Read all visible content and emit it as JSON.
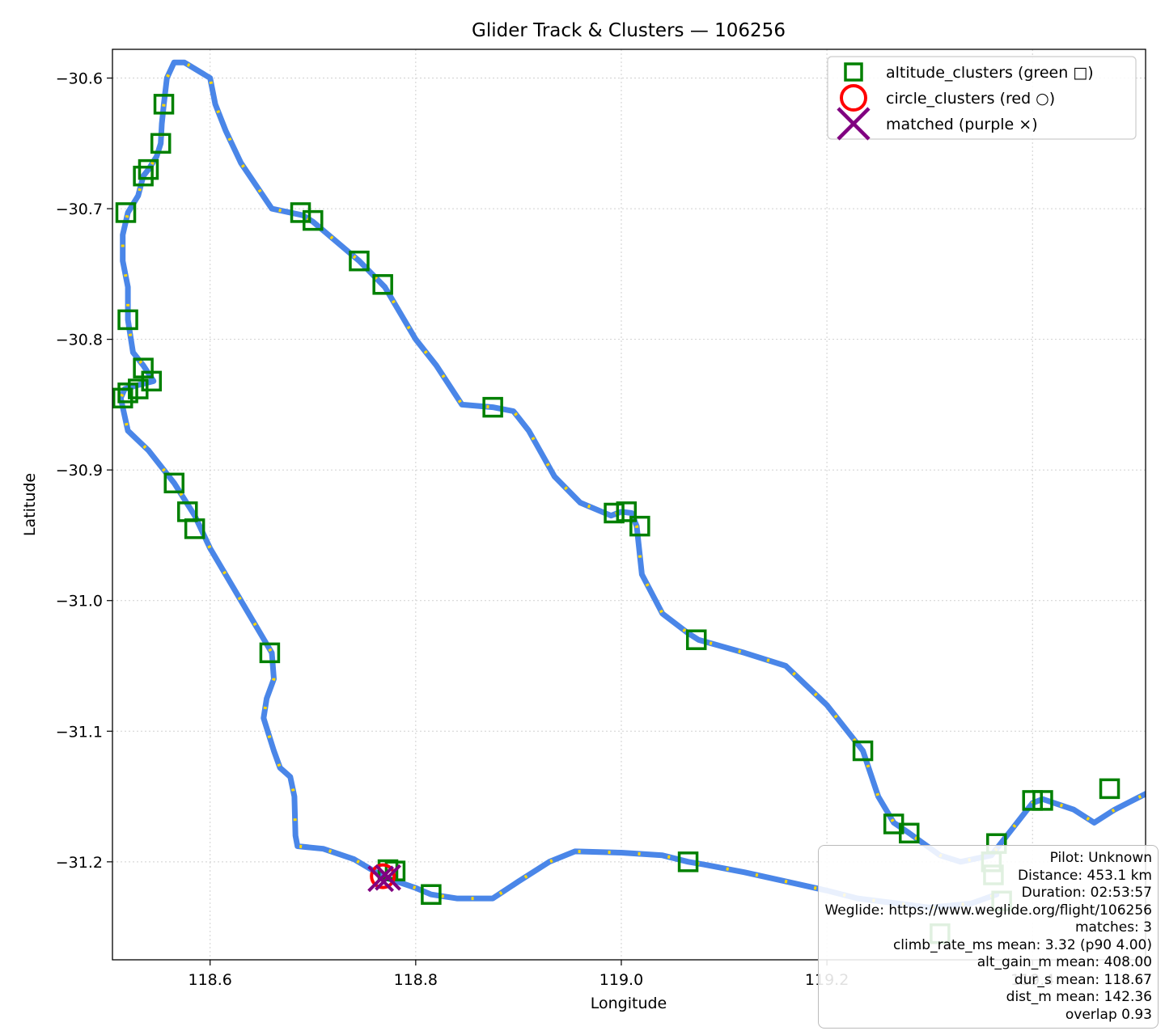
{
  "chart_data": {
    "type": "scatter",
    "title": "Glider Track & Clusters — 106256",
    "xlabel": "Longitude",
    "ylabel": "Latitude",
    "xlim": [
      118.505,
      119.51
    ],
    "ylim": [
      -31.275,
      -30.578
    ],
    "x_ticks": [
      118.6,
      118.8,
      119.0,
      119.2,
      119.4
    ],
    "x_tick_labels": [
      "118.6",
      "118.8",
      "119.0",
      "119.2",
      "119.4"
    ],
    "y_ticks": [
      -30.6,
      -30.7,
      -30.8,
      -30.9,
      -31.0,
      -31.1,
      -31.2
    ],
    "y_tick_labels": [
      "−30.6",
      "−30.7",
      "−30.8",
      "−30.9",
      "−31.0",
      "−31.1",
      "−31.2"
    ],
    "grid": true,
    "legend_position": "top-right",
    "legend": [
      {
        "label": "altitude_clusters (green □)",
        "marker": "square",
        "color": "#008000"
      },
      {
        "label": "circle_clusters (red ○)",
        "marker": "circle",
        "color": "#ff0000"
      },
      {
        "label": "matched (purple ×)",
        "marker": "x",
        "color": "#800080"
      }
    ],
    "track": {
      "color": "#4a86e8",
      "highlight_color": "#ffd700",
      "points": [
        [
          118.77,
          -31.212
        ],
        [
          118.74,
          -31.198
        ],
        [
          118.71,
          -31.19
        ],
        [
          118.685,
          -31.188
        ],
        [
          118.683,
          -31.18
        ],
        [
          118.682,
          -31.15
        ],
        [
          118.678,
          -31.135
        ],
        [
          118.668,
          -31.128
        ],
        [
          118.662,
          -31.115
        ],
        [
          118.652,
          -31.09
        ],
        [
          118.655,
          -31.075
        ],
        [
          118.662,
          -31.06
        ],
        [
          118.66,
          -31.04
        ],
        [
          118.645,
          -31.02
        ],
        [
          118.63,
          -31.0
        ],
        [
          118.6,
          -30.96
        ],
        [
          118.585,
          -30.935
        ],
        [
          118.565,
          -30.91
        ],
        [
          118.54,
          -30.885
        ],
        [
          118.52,
          -30.87
        ],
        [
          118.513,
          -30.845
        ],
        [
          118.517,
          -30.838
        ],
        [
          118.53,
          -30.835
        ],
        [
          118.545,
          -30.832
        ],
        [
          118.535,
          -30.82
        ],
        [
          118.525,
          -30.81
        ],
        [
          118.52,
          -30.785
        ],
        [
          118.52,
          -30.76
        ],
        [
          118.515,
          -30.74
        ],
        [
          118.515,
          -30.72
        ],
        [
          118.52,
          -30.703
        ],
        [
          118.53,
          -30.69
        ],
        [
          118.535,
          -30.675
        ],
        [
          118.54,
          -30.67
        ],
        [
          118.548,
          -30.66
        ],
        [
          118.552,
          -30.65
        ],
        [
          118.553,
          -30.635
        ],
        [
          118.555,
          -30.62
        ],
        [
          118.558,
          -30.6
        ],
        [
          118.565,
          -30.588
        ],
        [
          118.575,
          -30.588
        ],
        [
          118.6,
          -30.6
        ],
        [
          118.605,
          -30.62
        ],
        [
          118.615,
          -30.64
        ],
        [
          118.63,
          -30.665
        ],
        [
          118.66,
          -30.7
        ],
        [
          118.69,
          -30.705
        ],
        [
          118.7,
          -30.71
        ],
        [
          118.745,
          -30.74
        ],
        [
          118.77,
          -30.76
        ],
        [
          118.8,
          -30.8
        ],
        [
          118.82,
          -30.82
        ],
        [
          118.845,
          -30.85
        ],
        [
          118.875,
          -30.852
        ],
        [
          118.895,
          -30.855
        ],
        [
          118.91,
          -30.87
        ],
        [
          118.935,
          -30.905
        ],
        [
          118.96,
          -30.925
        ],
        [
          118.99,
          -30.935
        ],
        [
          119.0,
          -30.932
        ],
        [
          119.01,
          -30.933
        ],
        [
          119.015,
          -30.943
        ],
        [
          119.02,
          -30.98
        ],
        [
          119.04,
          -31.01
        ],
        [
          119.065,
          -31.025
        ],
        [
          119.075,
          -31.03
        ],
        [
          119.12,
          -31.04
        ],
        [
          119.16,
          -31.05
        ],
        [
          119.2,
          -31.08
        ],
        [
          119.235,
          -31.115
        ],
        [
          119.25,
          -31.15
        ],
        [
          119.265,
          -31.17
        ],
        [
          119.28,
          -31.178
        ],
        [
          119.31,
          -31.195
        ],
        [
          119.33,
          -31.2
        ],
        [
          119.36,
          -31.195
        ],
        [
          119.365,
          -31.19
        ],
        [
          119.38,
          -31.175
        ],
        [
          119.4,
          -31.155
        ],
        [
          119.41,
          -31.152
        ],
        [
          119.44,
          -31.16
        ],
        [
          119.46,
          -31.17
        ],
        [
          119.48,
          -31.16
        ],
        [
          119.51,
          -31.148
        ],
        [
          119.515,
          -31.146
        ]
      ],
      "return_leg": [
        [
          118.77,
          -31.212
        ],
        [
          118.8,
          -31.22
        ],
        [
          118.815,
          -31.225
        ],
        [
          118.84,
          -31.228
        ],
        [
          118.875,
          -31.228
        ],
        [
          118.9,
          -31.215
        ],
        [
          118.93,
          -31.2
        ],
        [
          118.955,
          -31.192
        ],
        [
          119.0,
          -31.193
        ],
        [
          119.04,
          -31.195
        ],
        [
          119.065,
          -31.2
        ],
        [
          119.08,
          -31.202
        ],
        [
          119.12,
          -31.208
        ],
        [
          119.16,
          -31.215
        ],
        [
          119.2,
          -31.222
        ],
        [
          119.23,
          -31.228
        ],
        [
          119.27,
          -31.232
        ],
        [
          119.3,
          -31.235
        ],
        [
          119.34,
          -31.232
        ],
        [
          119.365,
          -31.225
        ]
      ]
    },
    "altitude_clusters": [
      [
        118.555,
        -30.62
      ],
      [
        118.552,
        -30.65
      ],
      [
        118.54,
        -30.67
      ],
      [
        118.535,
        -30.675
      ],
      [
        118.518,
        -30.703
      ],
      [
        118.52,
        -30.785
      ],
      [
        118.535,
        -30.822
      ],
      [
        118.543,
        -30.832
      ],
      [
        118.53,
        -30.838
      ],
      [
        118.52,
        -30.841
      ],
      [
        118.515,
        -30.845
      ],
      [
        118.565,
        -30.91
      ],
      [
        118.578,
        -30.932
      ],
      [
        118.585,
        -30.945
      ],
      [
        118.658,
        -31.04
      ],
      [
        118.688,
        -30.703
      ],
      [
        118.7,
        -30.709
      ],
      [
        118.745,
        -30.74
      ],
      [
        118.768,
        -30.758
      ],
      [
        118.875,
        -30.852
      ],
      [
        118.993,
        -30.933
      ],
      [
        119.005,
        -30.932
      ],
      [
        119.018,
        -30.943
      ],
      [
        119.073,
        -31.03
      ],
      [
        119.235,
        -31.115
      ],
      [
        119.265,
        -31.171
      ],
      [
        119.28,
        -31.178
      ],
      [
        119.365,
        -31.186
      ],
      [
        119.36,
        -31.2
      ],
      [
        119.362,
        -31.21
      ],
      [
        119.37,
        -31.23
      ],
      [
        119.4,
        -31.153
      ],
      [
        119.41,
        -31.153
      ],
      [
        119.475,
        -31.144
      ],
      [
        118.773,
        -31.206
      ],
      [
        118.78,
        -31.207
      ],
      [
        118.815,
        -31.225
      ],
      [
        119.065,
        -31.2
      ],
      [
        119.31,
        -31.255
      ]
    ],
    "circle_clusters": [
      [
        118.768,
        -31.211
      ]
    ],
    "matched": [
      [
        118.766,
        -31.213
      ],
      [
        118.773,
        -31.212
      ]
    ],
    "info": [
      "Pilot: Unknown",
      "Distance: 453.1 km",
      "Duration: 02:53:57",
      "Weglide: https://www.weglide.org/flight/106256",
      "matches: 3",
      "climb_rate_ms mean: 3.32 (p90 4.00)",
      "alt_gain_m mean: 408.00",
      "dur_s mean: 118.67",
      "dist_m mean: 142.36",
      "overlap 0.93"
    ]
  }
}
